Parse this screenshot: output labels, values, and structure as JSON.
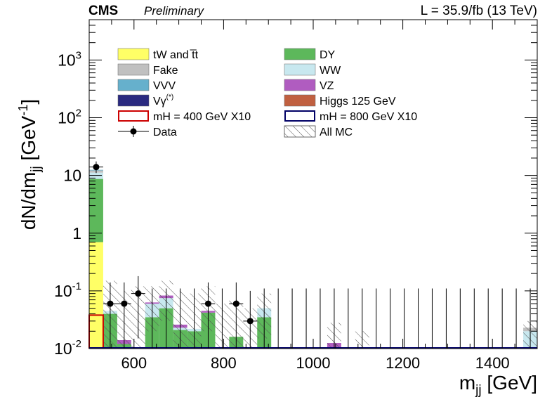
{
  "header": {
    "experiment": "CMS",
    "status": "Preliminary",
    "lumi": "L = 35.9/fb (13 TeV)"
  },
  "chart_data": {
    "type": "bar",
    "xlabel": "m",
    "xlabel_sub": "jj",
    "xlabel_unit": "[GeV]",
    "ylabel": "dN/dm",
    "ylabel_sub": "jj",
    "ylabel_unit_pre": "[GeV",
    "ylabel_unit_sup": "-1",
    "ylabel_unit_post": "]",
    "xlim": [
      500,
      1500
    ],
    "ylim": [
      0.01,
      5000
    ],
    "yscale": "log",
    "bin_width": 31.25,
    "x_ticks": [
      {
        "value": 600,
        "label": "600"
      },
      {
        "value": 800,
        "label": "800"
      },
      {
        "value": 1000,
        "label": "1000"
      },
      {
        "value": 1200,
        "label": "1200"
      },
      {
        "value": 1400,
        "label": "1400"
      }
    ],
    "y_ticks": [
      {
        "value": 0.01,
        "base": "10",
        "exp": "-2"
      },
      {
        "value": 0.1,
        "base": "10",
        "exp": "-1"
      },
      {
        "value": 1,
        "base": "1",
        "exp": ""
      },
      {
        "value": 10,
        "base": "10",
        "exp": ""
      },
      {
        "value": 100,
        "base": "10",
        "exp": "2"
      },
      {
        "value": 1000,
        "base": "10",
        "exp": "3"
      }
    ],
    "legend_position": "top",
    "legend": [
      {
        "key": "tw",
        "label": "tW and t̅t",
        "style": "fill",
        "color": "#ffff66"
      },
      {
        "key": "dy",
        "label": "DY",
        "style": "fill",
        "color": "#5db85b"
      },
      {
        "key": "fake",
        "label": "Fake",
        "style": "fill",
        "color": "#c0c0c0"
      },
      {
        "key": "ww",
        "label": "WW",
        "style": "fill",
        "color": "#c8e8ef"
      },
      {
        "key": "vvv",
        "label": "VVV",
        "style": "fill",
        "color": "#66b0cc"
      },
      {
        "key": "vz",
        "label": "VZ",
        "style": "fill",
        "color": "#b05cc0"
      },
      {
        "key": "vg",
        "label": "Vγ",
        "label_sup": "(*)",
        "style": "fill",
        "color": "#2a2a80"
      },
      {
        "key": "higgs",
        "label": "Higgs 125 GeV",
        "style": "fill",
        "color": "#c06040"
      },
      {
        "key": "mh400",
        "label": "mH = 400 GeV X10",
        "style": "line",
        "color": "#cc0000"
      },
      {
        "key": "mh800",
        "label": "mH = 800 GeV X10",
        "style": "line",
        "color": "#000066"
      },
      {
        "key": "data",
        "label": "Data",
        "style": "marker",
        "color": "#000000"
      },
      {
        "key": "allmc",
        "label": "All MC",
        "style": "hatch",
        "color": "#555555"
      }
    ],
    "stack_bins": [
      {
        "x0": 500,
        "components": [
          {
            "key": "tw",
            "value": 0.7
          },
          {
            "key": "dy",
            "value": 8.0
          },
          {
            "key": "ww",
            "value": 2.5
          },
          {
            "key": "fake",
            "value": 1.0
          },
          {
            "key": "vvv",
            "value": 0.3
          }
        ]
      },
      {
        "x0": 531.25,
        "components": [
          {
            "key": "dy",
            "value": 0.04
          },
          {
            "key": "ww",
            "value": 0.005
          }
        ]
      },
      {
        "x0": 562.5,
        "components": [
          {
            "key": "dy",
            "value": 0.012
          },
          {
            "key": "vz",
            "value": 0.002
          }
        ]
      },
      {
        "x0": 593.75,
        "components": [
          {
            "key": "ww",
            "value": 0.008
          },
          {
            "key": "vz",
            "value": 0.0015
          }
        ]
      },
      {
        "x0": 625,
        "components": [
          {
            "key": "dy",
            "value": 0.035
          },
          {
            "key": "ww",
            "value": 0.025
          },
          {
            "key": "vz",
            "value": 0.003
          }
        ]
      },
      {
        "x0": 656.25,
        "components": [
          {
            "key": "dy",
            "value": 0.05
          },
          {
            "key": "ww",
            "value": 0.025
          },
          {
            "key": "vz",
            "value": 0.008
          }
        ]
      },
      {
        "x0": 687.5,
        "components": [
          {
            "key": "dy",
            "value": 0.021
          },
          {
            "key": "ww",
            "value": 0.002
          },
          {
            "key": "vz",
            "value": 0.003
          }
        ]
      },
      {
        "x0": 718.75,
        "components": [
          {
            "key": "dy",
            "value": 0.02
          },
          {
            "key": "ww",
            "value": 0.002
          }
        ]
      },
      {
        "x0": 750,
        "components": [
          {
            "key": "dy",
            "value": 0.042
          },
          {
            "key": "vz",
            "value": 0.003
          }
        ]
      },
      {
        "x0": 812.5,
        "components": [
          {
            "key": "dy",
            "value": 0.016
          }
        ]
      },
      {
        "x0": 875,
        "components": [
          {
            "key": "dy",
            "value": 0.035
          },
          {
            "key": "ww",
            "value": 0.015
          }
        ]
      },
      {
        "x0": 1031.25,
        "components": [
          {
            "key": "vz",
            "value": 0.0125
          }
        ]
      },
      {
        "x0": 1468.75,
        "components": [
          {
            "key": "ww",
            "value": 0.02
          },
          {
            "key": "fake",
            "value": 0.003
          }
        ]
      }
    ],
    "mc_uncertainty_bins": [
      {
        "x0": 531.25,
        "low": 0.01,
        "high": 0.15
      },
      {
        "x0": 562.5,
        "low": 0.01,
        "high": 0.1
      },
      {
        "x0": 593.75,
        "low": 0.01,
        "high": 0.12
      },
      {
        "x0": 625,
        "low": 0.02,
        "high": 0.12
      },
      {
        "x0": 656.25,
        "low": 0.03,
        "high": 0.15
      },
      {
        "x0": 687.5,
        "low": 0.01,
        "high": 0.1
      },
      {
        "x0": 718.75,
        "low": 0.01,
        "high": 0.09
      },
      {
        "x0": 750,
        "low": 0.02,
        "high": 0.12
      },
      {
        "x0": 781.25,
        "low": 0.01,
        "high": 0.06
      },
      {
        "x0": 812.5,
        "low": 0.01,
        "high": 0.07
      },
      {
        "x0": 843.75,
        "low": 0.01,
        "high": 0.05
      },
      {
        "x0": 875,
        "low": 0.015,
        "high": 0.09
      },
      {
        "x0": 1031.25,
        "low": 0.01,
        "high": 0.028
      },
      {
        "x0": 1093.75,
        "low": 0.01,
        "high": 0.02
      },
      {
        "x0": 1468.75,
        "low": 0.01,
        "high": 0.03
      }
    ],
    "signal_lines": {
      "mh400": {
        "x0": 500,
        "x1": 531.25,
        "value": 0.038,
        "rest": 0.01
      },
      "mh800": {
        "value": 0.01
      }
    },
    "data_points": [
      {
        "x": 515.6,
        "y": 14.0,
        "ylo": 11.0,
        "yhi": 17.5
      },
      {
        "x": 546.9,
        "y": 0.06,
        "ylo": 0.01,
        "yhi": 0.14
      },
      {
        "x": 578.1,
        "y": 0.06,
        "ylo": 0.01,
        "yhi": 0.14
      },
      {
        "x": 609.4,
        "y": 0.09,
        "ylo": 0.015,
        "yhi": 0.18
      },
      {
        "x": 765.6,
        "y": 0.06,
        "ylo": 0.01,
        "yhi": 0.14
      },
      {
        "x": 828.1,
        "y": 0.06,
        "ylo": 0.01,
        "yhi": 0.14
      },
      {
        "x": 859.4,
        "y": 0.03,
        "ylo": 0.01,
        "yhi": 0.1
      }
    ],
    "empty_data_bins": [
      640.6,
      671.9,
      703.1,
      734.4,
      796.9,
      890.6,
      921.9,
      953.1,
      984.4,
      1015.6,
      1046.9,
      1078.1,
      1109.4,
      1140.6,
      1171.9,
      1203.1,
      1234.4,
      1265.6,
      1296.9,
      1328.1,
      1359.4,
      1390.6,
      1421.9,
      1453.1,
      1484.4
    ],
    "empty_bin_upper": 0.11
  }
}
